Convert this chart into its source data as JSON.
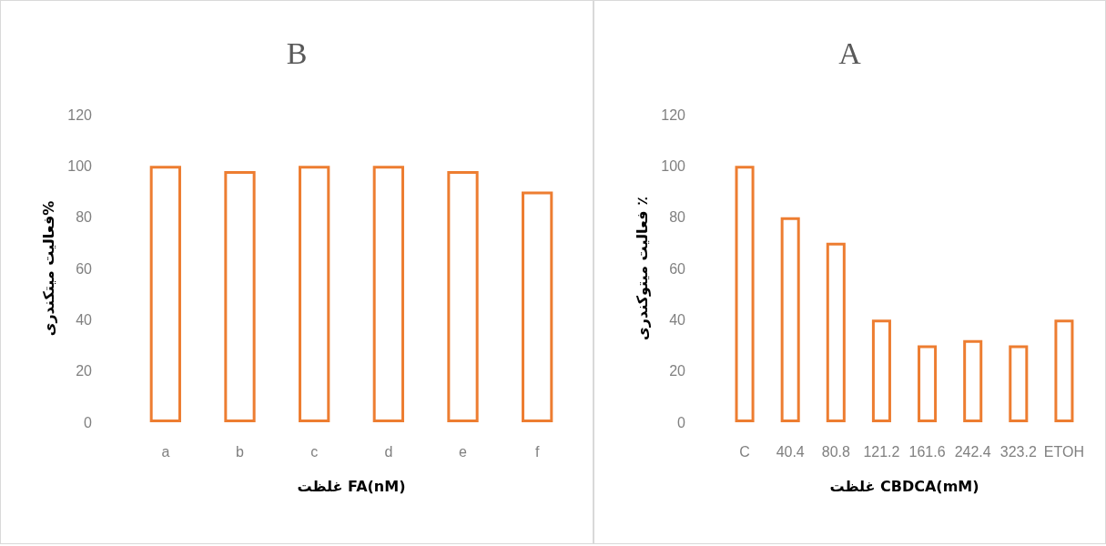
{
  "chart_data": [
    {
      "type": "bar",
      "title": "B",
      "xlabel": "غلظت FA(nM)",
      "ylabel": "فعالیت میتکندری%",
      "categories": [
        "a",
        "b",
        "c",
        "d",
        "e",
        "f"
      ],
      "series": [
        {
          "color": "#ed7d31",
          "values": [
            100,
            98,
            100,
            100,
            98,
            90
          ]
        }
      ],
      "ylim": [
        0,
        120
      ],
      "yticks": [
        0,
        20,
        40,
        60,
        80,
        100,
        120
      ],
      "grid": false
    },
    {
      "type": "bar",
      "title": "A",
      "xlabel": "غلظت CBDCA(mM)",
      "ylabel": "فعالیت میتوکندری ٪",
      "categories": [
        "C",
        "40.4",
        "80.8",
        "121.2",
        "161.6",
        "242.4",
        "323.2",
        "ETOH"
      ],
      "series": [
        {
          "color": "#ed7d31",
          "values": [
            100,
            80,
            70,
            40,
            30,
            32,
            30,
            40
          ]
        }
      ],
      "ylim": [
        0,
        120
      ],
      "yticks": [
        0,
        20,
        40,
        60,
        80,
        100,
        120
      ],
      "grid": false
    }
  ]
}
